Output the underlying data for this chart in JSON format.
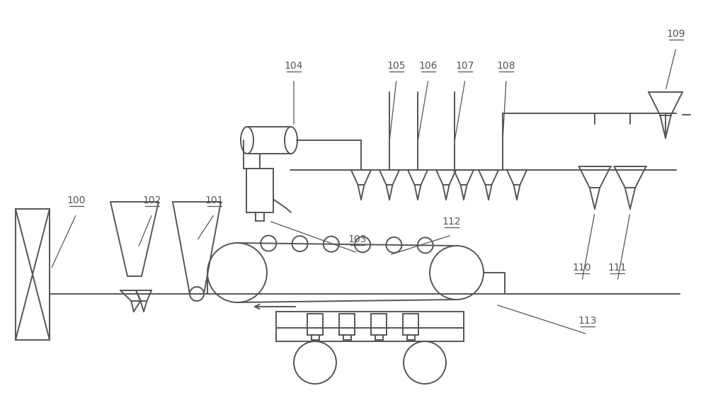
{
  "bg_color": "#ffffff",
  "lc": "#555555",
  "lw": 1.4,
  "label_fs": 10,
  "fig_w": 10.0,
  "fig_h": 5.62,
  "dpi": 100
}
